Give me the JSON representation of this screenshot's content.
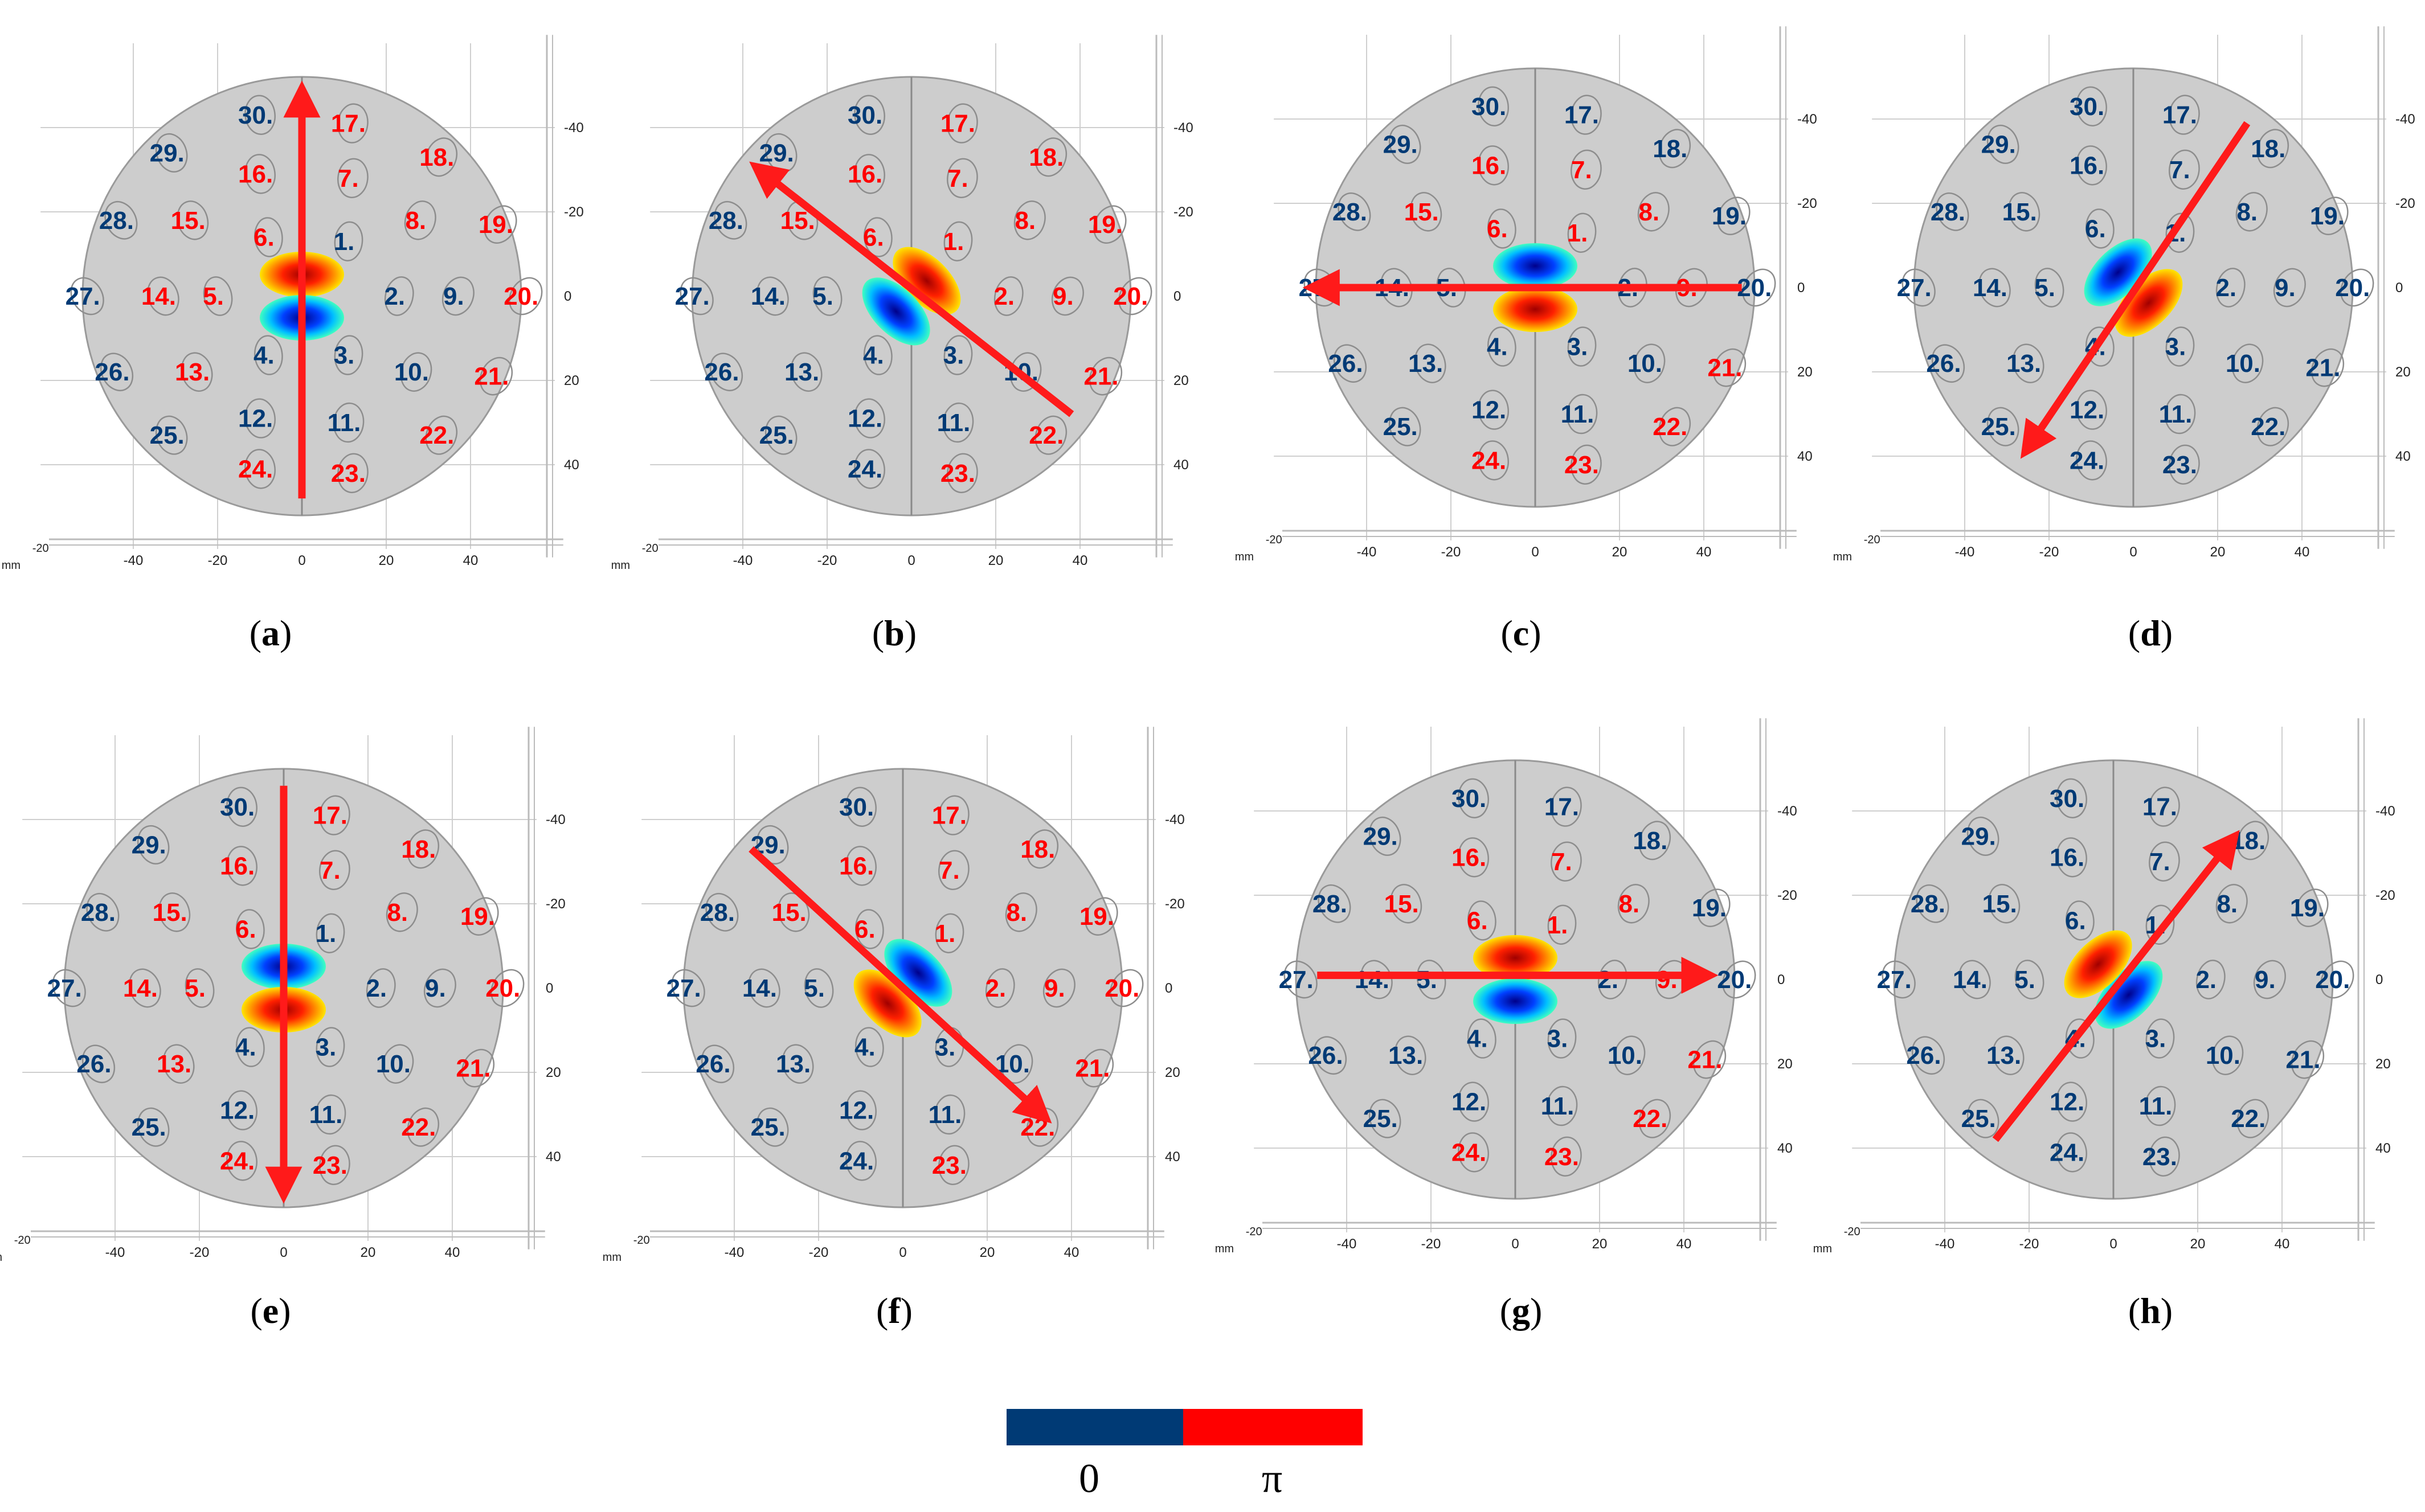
{
  "axis": {
    "x_ticks": [
      "-40",
      "-20",
      "0",
      "20",
      "40"
    ],
    "y_ticks": [
      "-40",
      "-20",
      "0",
      "20",
      "40"
    ],
    "unit": "mm",
    "corner": "-20"
  },
  "colors": {
    "zero": "#003a75",
    "pi": "#ff0000",
    "arrow": "#ff1a1a"
  },
  "electrodes": [
    {
      "n": "1.",
      "x": 10,
      "y": -13
    },
    {
      "n": "2.",
      "x": 22,
      "y": 0
    },
    {
      "n": "3.",
      "x": 10,
      "y": 14
    },
    {
      "n": "4.",
      "x": -9,
      "y": 14
    },
    {
      "n": "5.",
      "x": -21,
      "y": 0
    },
    {
      "n": "6.",
      "x": -9,
      "y": -14
    },
    {
      "n": "7.",
      "x": 11,
      "y": -28
    },
    {
      "n": "8.",
      "x": 27,
      "y": -18
    },
    {
      "n": "9.",
      "x": 36,
      "y": 0
    },
    {
      "n": "10.",
      "x": 26,
      "y": 18
    },
    {
      "n": "11.",
      "x": 10,
      "y": 30
    },
    {
      "n": "12.",
      "x": -11,
      "y": 29
    },
    {
      "n": "13.",
      "x": -26,
      "y": 18
    },
    {
      "n": "14.",
      "x": -34,
      "y": 0
    },
    {
      "n": "15.",
      "x": -27,
      "y": -18
    },
    {
      "n": "16.",
      "x": -11,
      "y": -29
    },
    {
      "n": "17.",
      "x": 11,
      "y": -41
    },
    {
      "n": "18.",
      "x": 32,
      "y": -33
    },
    {
      "n": "19.",
      "x": 46,
      "y": -17
    },
    {
      "n": "20.",
      "x": 52,
      "y": 0
    },
    {
      "n": "21.",
      "x": 45,
      "y": 19
    },
    {
      "n": "22.",
      "x": 32,
      "y": 33
    },
    {
      "n": "23.",
      "x": 11,
      "y": 42
    },
    {
      "n": "24.",
      "x": -11,
      "y": 41
    },
    {
      "n": "25.",
      "x": -32,
      "y": 33
    },
    {
      "n": "26.",
      "x": -45,
      "y": 18
    },
    {
      "n": "27.",
      "x": -52,
      "y": 0
    },
    {
      "n": "28.",
      "x": -44,
      "y": -18
    },
    {
      "n": "29.",
      "x": -32,
      "y": -34
    },
    {
      "n": "30.",
      "x": -11,
      "y": -43
    }
  ],
  "panels": [
    {
      "id": "a",
      "caption": "a",
      "angle": 90,
      "phase": "LLLLRRRRLLLLRRRRRRRRRRRRLLLLLL",
      "arrow": {
        "from": [
          0,
          48
        ],
        "to": [
          0,
          -48
        ]
      }
    },
    {
      "id": "b",
      "caption": "b",
      "angle": 45,
      "phase": "RRLLLRRRRLLLLLRRRRRRRRRLLLLLLL",
      "arrow": {
        "from": [
          38,
          28
        ],
        "to": [
          -36,
          -30
        ]
      }
    },
    {
      "id": "c",
      "caption": "c",
      "angle": 0,
      "phase": "RLLLLRRRRLLLLLRRLLLLRRRRLLLLLL",
      "arrow": {
        "from": [
          49,
          0
        ],
        "to": [
          -52,
          0
        ]
      }
    },
    {
      "id": "d",
      "caption": "d",
      "angle": -45,
      "phase": "LLLLLLLLLLLLLLLLLLLLLLLLLLLLLL",
      "arrow": {
        "from": [
          27,
          -39
        ],
        "to": [
          -25,
          38
        ]
      }
    },
    {
      "id": "e",
      "caption": "e",
      "angle": 90,
      "phase": "LLLLRRRRLLLLRRRRRRRRRRRRLLLLLL",
      "arrow": {
        "from": [
          0,
          -48
        ],
        "to": [
          0,
          48
        ]
      }
    },
    {
      "id": "f",
      "caption": "f",
      "angle": 45,
      "phase": "RRLLLRRRRLLLLLRRRRRRRRRLLLLLLL",
      "arrow": {
        "from": [
          -36,
          -33
        ],
        "to": [
          33,
          30
        ]
      }
    },
    {
      "id": "g",
      "caption": "g",
      "angle": 0,
      "phase": "RLLLLRRRRLLLLLRRLLLLRRRRLLLLLL",
      "arrow": {
        "from": [
          -47,
          -1
        ],
        "to": [
          45,
          -1
        ]
      }
    },
    {
      "id": "h",
      "caption": "h",
      "angle": -45,
      "phase": "LLLLLLLLLLLLLLLLLLLLLLLLLLLLLL",
      "arrow": {
        "from": [
          -28,
          38
        ],
        "to": [
          28,
          -33
        ]
      }
    }
  ],
  "legend": {
    "zero_label": "0",
    "pi_label": "π"
  }
}
